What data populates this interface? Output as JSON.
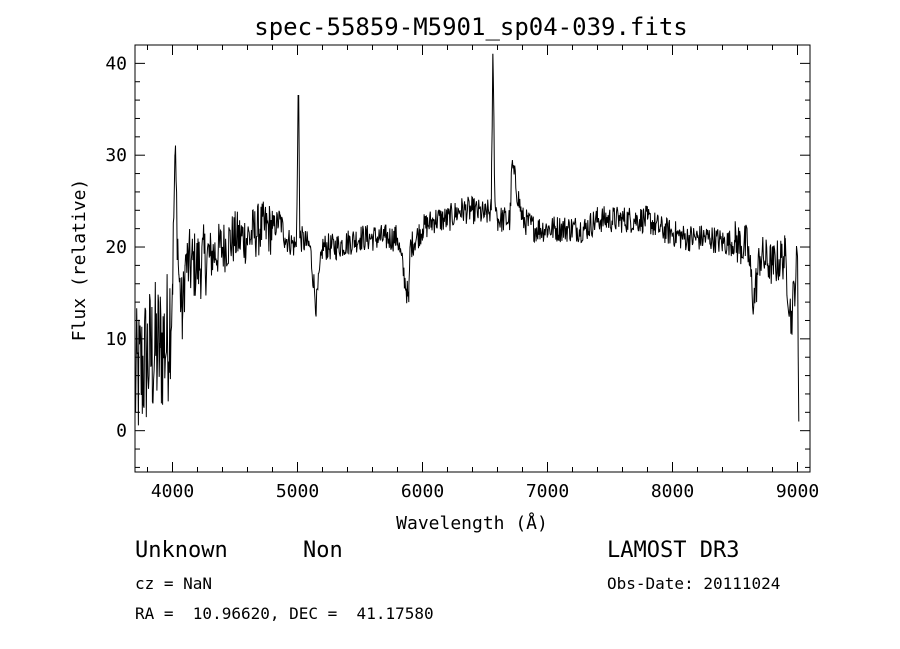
{
  "chart_data": {
    "type": "line",
    "title": "spec-55859-M5901_sp04-039.fits",
    "xlabel": "Wavelength (Å)",
    "ylabel": "Flux (relative)",
    "xlim": [
      3700,
      9100
    ],
    "ylim": [
      -4.5,
      42
    ],
    "x_ticks": [
      4000,
      5000,
      6000,
      7000,
      8000,
      9000
    ],
    "y_ticks": [
      0,
      10,
      20,
      30,
      40
    ],
    "x_tick_labels": [
      "4000",
      "5000",
      "6000",
      "7000",
      "8000",
      "9000"
    ],
    "y_tick_labels": [
      "0",
      "10",
      "20",
      "30",
      "40"
    ],
    "grid": false,
    "series": [
      {
        "x": [
          3700,
          3800,
          3900,
          3960,
          4000,
          4020,
          4050,
          4080,
          4100,
          4200,
          4300,
          4400,
          4500,
          4600,
          4700,
          4800,
          4860,
          4900,
          4990,
          5007,
          5020,
          5100,
          5150,
          5200,
          5300,
          5400,
          5500,
          5600,
          5700,
          5800,
          5890,
          5900,
          6000,
          6100,
          6200,
          6300,
          6400,
          6500,
          6550,
          6563,
          6580,
          6600,
          6700,
          6716,
          6800,
          6900,
          7000,
          7100,
          7200,
          7300,
          7400,
          7500,
          7600,
          7700,
          7800,
          7900,
          8000,
          8100,
          8200,
          8300,
          8400,
          8500,
          8600,
          8650,
          8700,
          8800,
          8900,
          8950,
          9000,
          9010
        ],
        "y": [
          5,
          8,
          9,
          10,
          16,
          30,
          17,
          12,
          18,
          18,
          19,
          20,
          21,
          21,
          22,
          22,
          23,
          21,
          20,
          36.5,
          21,
          20,
          13.5,
          20,
          20,
          20.5,
          21,
          21,
          21,
          21,
          14,
          20,
          22,
          23,
          23,
          24,
          24,
          23.5,
          24,
          41,
          25,
          23,
          23,
          29,
          23,
          22,
          22,
          22,
          22,
          22,
          23,
          23,
          23,
          23,
          23,
          22,
          21.5,
          21,
          21,
          21,
          20.5,
          20.5,
          20,
          14,
          19,
          18,
          19,
          12,
          19,
          1
        ]
      }
    ]
  },
  "info": {
    "object_class": "Unknown",
    "object_subclass": "Non",
    "survey": "LAMOST DR3",
    "cz": "cz = NaN",
    "obs_date": "Obs-Date: 20111024",
    "coords": "RA =  10.96620, DEC =  41.17580"
  }
}
